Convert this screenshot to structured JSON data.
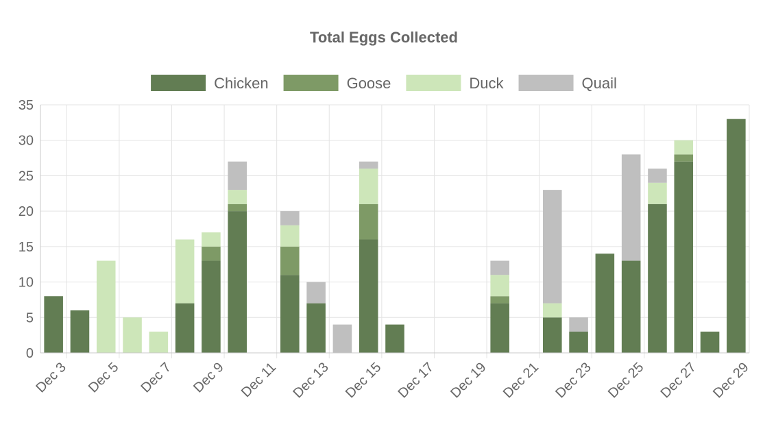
{
  "chart_data": {
    "type": "bar",
    "stacked": true,
    "title": "Total Eggs Collected",
    "xlabel": "",
    "ylabel": "",
    "ylim": [
      0,
      35
    ],
    "yticks": [
      0,
      5,
      10,
      15,
      20,
      25,
      30,
      35
    ],
    "grid": true,
    "legend_position": "top",
    "categories": [
      "Dec 3",
      "Dec 4",
      "Dec 5",
      "Dec 6",
      "Dec 7",
      "Dec 8",
      "Dec 9",
      "Dec 10",
      "Dec 11",
      "Dec 12",
      "Dec 13",
      "Dec 14",
      "Dec 15",
      "Dec 16",
      "Dec 17",
      "Dec 18",
      "Dec 19",
      "Dec 20",
      "Dec 21",
      "Dec 22",
      "Dec 23",
      "Dec 24",
      "Dec 25",
      "Dec 26",
      "Dec 27",
      "Dec 28",
      "Dec 29"
    ],
    "x_tick_labels": [
      "Dec 3",
      "Dec 5",
      "Dec 7",
      "Dec 9",
      "Dec 11",
      "Dec 13",
      "Dec 15",
      "Dec 17",
      "Dec 19",
      "Dec 21",
      "Dec 23",
      "Dec 25",
      "Dec 27",
      "Dec 29"
    ],
    "series": [
      {
        "name": "Chicken",
        "color": "#627d53",
        "values": [
          8,
          6,
          0,
          0,
          0,
          7,
          13,
          20,
          0,
          11,
          7,
          0,
          16,
          4,
          0,
          0,
          0,
          7,
          0,
          5,
          3,
          14,
          13,
          21,
          27,
          3,
          33
        ]
      },
      {
        "name": "Goose",
        "color": "#7e9a66",
        "values": [
          0,
          0,
          0,
          0,
          0,
          0,
          2,
          1,
          0,
          4,
          0,
          0,
          5,
          0,
          0,
          0,
          0,
          1,
          0,
          0,
          0,
          0,
          0,
          0,
          1,
          0,
          0
        ]
      },
      {
        "name": "Duck",
        "color": "#cde6b9",
        "values": [
          0,
          0,
          13,
          5,
          3,
          9,
          2,
          2,
          0,
          3,
          0,
          0,
          5,
          0,
          0,
          0,
          0,
          3,
          0,
          2,
          0,
          0,
          0,
          3,
          2,
          0,
          0
        ]
      },
      {
        "name": "Quail",
        "color": "#bfbfbf",
        "values": [
          0,
          0,
          0,
          0,
          0,
          0,
          0,
          4,
          0,
          2,
          3,
          4,
          1,
          0,
          0,
          0,
          0,
          2,
          0,
          16,
          2,
          0,
          15,
          2,
          0,
          0,
          0
        ]
      }
    ]
  }
}
